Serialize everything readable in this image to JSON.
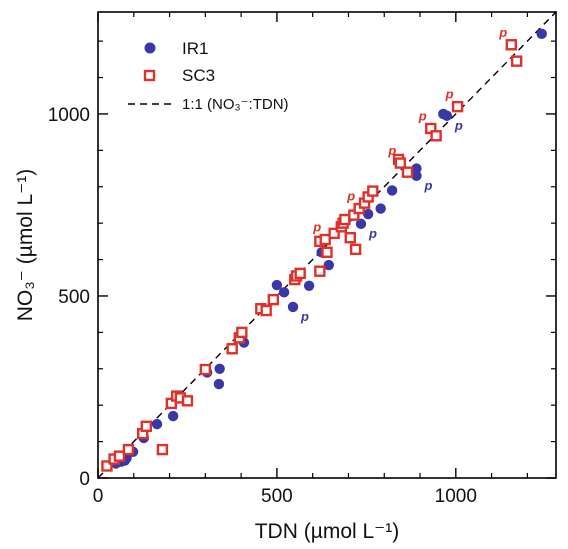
{
  "chart_data": {
    "type": "scatter",
    "xlabel": "TDN (µmol L⁻¹)",
    "ylabel": "NO₃⁻ (µmol L⁻¹)",
    "xlim": [
      0,
      1280
    ],
    "ylim": [
      0,
      1280
    ],
    "x_ticks": [
      0,
      500,
      1000
    ],
    "y_ticks": [
      0,
      500,
      1000
    ],
    "x_tick_labels": [
      "0",
      "500",
      "1000"
    ],
    "y_tick_labels": [
      "0",
      "500",
      "1000"
    ],
    "grid": false,
    "legend": {
      "position": "top-left",
      "entries": [
        {
          "series": "IR1",
          "label": "IR1"
        },
        {
          "series": "SC3",
          "label": "SC3"
        },
        {
          "series": "1:1",
          "label": "1:1 (NO₃⁻:TDN)"
        }
      ]
    },
    "reference_line": {
      "name": "1:1 (NO₃⁻:TDN)",
      "style": "dashed",
      "color": "#000000",
      "slope": 1,
      "intercept": 0
    },
    "annotation_text": "p",
    "series": [
      {
        "name": "IR1",
        "marker": "filled-circle",
        "color": "#3a37a6",
        "points": [
          {
            "x": 50,
            "y": 40
          },
          {
            "x": 65,
            "y": 45
          },
          {
            "x": 72,
            "y": 50
          },
          {
            "x": 80,
            "y": 55
          },
          {
            "x": 75,
            "y": 48
          },
          {
            "x": 98,
            "y": 72
          },
          {
            "x": 128,
            "y": 110
          },
          {
            "x": 165,
            "y": 148
          },
          {
            "x": 210,
            "y": 170
          },
          {
            "x": 305,
            "y": 290
          },
          {
            "x": 338,
            "y": 258
          },
          {
            "x": 340,
            "y": 300
          },
          {
            "x": 408,
            "y": 372
          },
          {
            "x": 500,
            "y": 530
          },
          {
            "x": 520,
            "y": 510
          },
          {
            "x": 545,
            "y": 470,
            "p": true
          },
          {
            "x": 590,
            "y": 528
          },
          {
            "x": 625,
            "y": 620
          },
          {
            "x": 645,
            "y": 585
          },
          {
            "x": 735,
            "y": 698,
            "p": true
          },
          {
            "x": 755,
            "y": 725
          },
          {
            "x": 790,
            "y": 740
          },
          {
            "x": 822,
            "y": 790
          },
          {
            "x": 890,
            "y": 830,
            "p": true
          },
          {
            "x": 890,
            "y": 850
          },
          {
            "x": 965,
            "y": 1000
          },
          {
            "x": 975,
            "y": 995,
            "p": true
          },
          {
            "x": 1240,
            "y": 1220
          }
        ]
      },
      {
        "name": "SC3",
        "marker": "open-square",
        "color": "#e0302a",
        "points": [
          {
            "x": 25,
            "y": 33
          },
          {
            "x": 45,
            "y": 52
          },
          {
            "x": 60,
            "y": 60
          },
          {
            "x": 85,
            "y": 78
          },
          {
            "x": 125,
            "y": 122
          },
          {
            "x": 135,
            "y": 142
          },
          {
            "x": 180,
            "y": 78
          },
          {
            "x": 205,
            "y": 205
          },
          {
            "x": 220,
            "y": 225
          },
          {
            "x": 230,
            "y": 220
          },
          {
            "x": 250,
            "y": 212
          },
          {
            "x": 300,
            "y": 298
          },
          {
            "x": 375,
            "y": 355
          },
          {
            "x": 395,
            "y": 385
          },
          {
            "x": 402,
            "y": 400
          },
          {
            "x": 455,
            "y": 465
          },
          {
            "x": 470,
            "y": 460
          },
          {
            "x": 490,
            "y": 490
          },
          {
            "x": 550,
            "y": 545
          },
          {
            "x": 555,
            "y": 555
          },
          {
            "x": 565,
            "y": 562
          },
          {
            "x": 620,
            "y": 568
          },
          {
            "x": 620,
            "y": 650
          },
          {
            "x": 635,
            "y": 655,
            "p": true
          },
          {
            "x": 640,
            "y": 620
          },
          {
            "x": 660,
            "y": 672
          },
          {
            "x": 680,
            "y": 690
          },
          {
            "x": 685,
            "y": 700
          },
          {
            "x": 690,
            "y": 710
          },
          {
            "x": 705,
            "y": 660
          },
          {
            "x": 715,
            "y": 722
          },
          {
            "x": 720,
            "y": 628
          },
          {
            "x": 730,
            "y": 740,
            "p": true
          },
          {
            "x": 745,
            "y": 755
          },
          {
            "x": 755,
            "y": 772
          },
          {
            "x": 768,
            "y": 788
          },
          {
            "x": 840,
            "y": 875
          },
          {
            "x": 845,
            "y": 865,
            "p": true
          },
          {
            "x": 865,
            "y": 840
          },
          {
            "x": 930,
            "y": 960,
            "p": true
          },
          {
            "x": 945,
            "y": 940
          },
          {
            "x": 1005,
            "y": 1020,
            "p": true
          },
          {
            "x": 1155,
            "y": 1190,
            "p": true
          },
          {
            "x": 1170,
            "y": 1145
          }
        ]
      }
    ]
  }
}
